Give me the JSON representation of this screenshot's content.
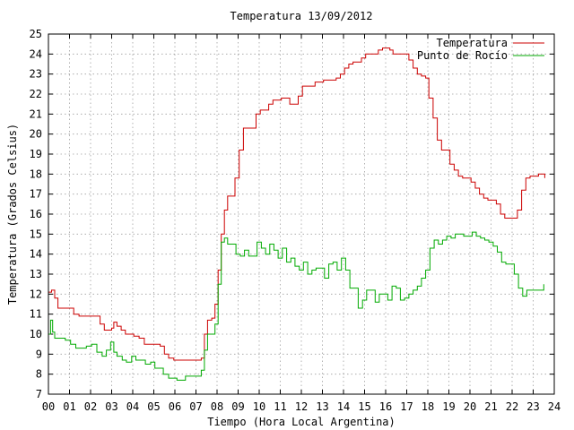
{
  "chart_data": {
    "type": "line",
    "title": "Temperatura 13/09/2012",
    "xlabel": "Tiempo (Hora Local Argentina)",
    "ylabel": "Temperatura (Grados Celsius)",
    "xlim": [
      0,
      24
    ],
    "ylim": [
      7,
      25
    ],
    "xticks": [
      "00",
      "01",
      "02",
      "03",
      "04",
      "05",
      "06",
      "07",
      "08",
      "09",
      "10",
      "11",
      "12",
      "13",
      "14",
      "15",
      "16",
      "17",
      "18",
      "19",
      "20",
      "21",
      "22",
      "23",
      "24"
    ],
    "yticks": [
      "7",
      "8",
      "9",
      "10",
      "11",
      "12",
      "13",
      "14",
      "15",
      "16",
      "17",
      "18",
      "19",
      "20",
      "21",
      "22",
      "23",
      "24",
      "25"
    ],
    "grid": true,
    "legend_position": "top-right",
    "series": [
      {
        "name": "Temperatura",
        "color": "#cc0000",
        "x": [
          0.0,
          0.15,
          0.3,
          0.45,
          0.7,
          0.95,
          1.2,
          1.45,
          1.7,
          1.95,
          2.2,
          2.45,
          2.65,
          2.85,
          3.0,
          3.1,
          3.25,
          3.45,
          3.65,
          3.85,
          4.05,
          4.3,
          4.55,
          4.8,
          5.05,
          5.3,
          5.5,
          5.7,
          5.95,
          6.2,
          6.45,
          6.7,
          6.95,
          7.1,
          7.25,
          7.4,
          7.55,
          7.75,
          7.9,
          8.05,
          8.2,
          8.35,
          8.5,
          8.65,
          8.85,
          9.05,
          9.25,
          9.45,
          9.65,
          9.85,
          10.05,
          10.25,
          10.45,
          10.65,
          10.85,
          11.05,
          11.25,
          11.45,
          11.65,
          11.85,
          12.05,
          12.25,
          12.45,
          12.65,
          12.85,
          13.05,
          13.25,
          13.45,
          13.65,
          13.85,
          14.05,
          14.25,
          14.45,
          14.65,
          14.85,
          15.05,
          15.25,
          15.45,
          15.65,
          15.85,
          16.05,
          16.2,
          16.35,
          16.55,
          16.75,
          16.95,
          17.1,
          17.3,
          17.5,
          17.7,
          17.9,
          18.05,
          18.25,
          18.45,
          18.65,
          18.85,
          19.05,
          19.25,
          19.45,
          19.65,
          19.85,
          20.05,
          20.25,
          20.45,
          20.65,
          20.85,
          21.05,
          21.25,
          21.45,
          21.65,
          21.85,
          22.05,
          22.25,
          22.45,
          22.65,
          22.85,
          23.05,
          23.25,
          23.4,
          23.55
        ],
        "values": [
          12.1,
          12.2,
          11.8,
          11.3,
          11.3,
          11.3,
          11.0,
          10.9,
          10.9,
          10.9,
          10.9,
          10.5,
          10.2,
          10.2,
          10.3,
          10.6,
          10.4,
          10.2,
          10.0,
          10.0,
          9.9,
          9.8,
          9.5,
          9.5,
          9.5,
          9.4,
          9.0,
          8.8,
          8.7,
          8.7,
          8.7,
          8.7,
          8.7,
          8.7,
          8.8,
          10.0,
          10.7,
          10.8,
          11.5,
          13.2,
          15.0,
          16.2,
          16.9,
          16.9,
          17.8,
          19.2,
          20.3,
          20.3,
          20.3,
          21.0,
          21.2,
          21.2,
          21.5,
          21.7,
          21.7,
          21.8,
          21.8,
          21.5,
          21.5,
          21.9,
          22.4,
          22.4,
          22.4,
          22.6,
          22.6,
          22.7,
          22.7,
          22.7,
          22.8,
          23.0,
          23.3,
          23.5,
          23.6,
          23.6,
          23.8,
          24.0,
          24.0,
          24.0,
          24.2,
          24.3,
          24.3,
          24.2,
          24.0,
          24.0,
          24.0,
          24.0,
          23.7,
          23.3,
          23.0,
          22.9,
          22.8,
          21.8,
          20.8,
          19.7,
          19.2,
          19.2,
          18.5,
          18.2,
          17.9,
          17.8,
          17.8,
          17.6,
          17.3,
          17.0,
          16.8,
          16.7,
          16.7,
          16.5,
          16.0,
          15.8,
          15.8,
          15.8,
          16.2,
          17.2,
          17.8,
          17.9,
          17.9,
          18.0,
          18.0,
          17.8
        ]
      },
      {
        "name": "Punto de Rocío",
        "color": "#00aa00",
        "x": [
          0.0,
          0.1,
          0.2,
          0.3,
          0.5,
          0.8,
          1.05,
          1.3,
          1.55,
          1.8,
          2.05,
          2.3,
          2.55,
          2.75,
          2.95,
          3.1,
          3.25,
          3.5,
          3.7,
          3.95,
          4.15,
          4.4,
          4.6,
          4.85,
          5.05,
          5.25,
          5.45,
          5.7,
          5.95,
          6.1,
          6.3,
          6.5,
          6.75,
          6.95,
          7.1,
          7.25,
          7.4,
          7.55,
          7.75,
          7.9,
          8.05,
          8.2,
          8.35,
          8.5,
          8.7,
          8.9,
          9.1,
          9.3,
          9.5,
          9.7,
          9.9,
          10.1,
          10.3,
          10.5,
          10.7,
          10.9,
          11.1,
          11.3,
          11.5,
          11.7,
          11.9,
          12.1,
          12.3,
          12.5,
          12.7,
          12.9,
          13.1,
          13.3,
          13.5,
          13.7,
          13.9,
          14.1,
          14.3,
          14.5,
          14.7,
          14.9,
          15.1,
          15.3,
          15.5,
          15.7,
          15.9,
          16.1,
          16.3,
          16.5,
          16.7,
          16.9,
          17.1,
          17.3,
          17.5,
          17.7,
          17.9,
          18.1,
          18.3,
          18.5,
          18.7,
          18.9,
          19.1,
          19.3,
          19.5,
          19.7,
          19.9,
          20.1,
          20.3,
          20.5,
          20.7,
          20.9,
          21.1,
          21.3,
          21.5,
          21.7,
          21.9,
          22.1,
          22.3,
          22.5,
          22.7,
          22.9,
          23.1,
          23.3,
          23.5
        ],
        "values": [
          10.0,
          10.7,
          10.1,
          9.8,
          9.8,
          9.7,
          9.5,
          9.3,
          9.3,
          9.4,
          9.5,
          9.1,
          8.9,
          9.2,
          9.6,
          9.1,
          8.9,
          8.7,
          8.6,
          8.9,
          8.7,
          8.7,
          8.5,
          8.6,
          8.3,
          8.3,
          8.0,
          7.8,
          7.8,
          7.7,
          7.7,
          7.9,
          7.9,
          7.9,
          7.9,
          8.2,
          9.2,
          10.0,
          10.0,
          10.5,
          12.5,
          14.6,
          14.8,
          14.5,
          14.5,
          14.0,
          13.9,
          14.2,
          13.9,
          13.9,
          14.6,
          14.3,
          14.0,
          14.5,
          14.2,
          13.8,
          14.3,
          13.6,
          13.8,
          13.4,
          13.2,
          13.6,
          13.0,
          13.2,
          13.3,
          13.3,
          12.8,
          13.5,
          13.6,
          13.2,
          13.8,
          13.2,
          12.3,
          12.3,
          11.3,
          11.7,
          12.2,
          12.2,
          11.6,
          12.0,
          12.0,
          11.7,
          12.4,
          12.3,
          11.7,
          11.8,
          12.0,
          12.2,
          12.4,
          12.8,
          13.2,
          14.3,
          14.7,
          14.5,
          14.7,
          14.9,
          14.8,
          15.0,
          15.0,
          14.9,
          14.9,
          15.1,
          14.9,
          14.8,
          14.7,
          14.6,
          14.4,
          14.1,
          13.6,
          13.5,
          13.5,
          13.0,
          12.3,
          11.9,
          12.2,
          12.2,
          12.2,
          12.2,
          12.5
        ]
      }
    ]
  }
}
